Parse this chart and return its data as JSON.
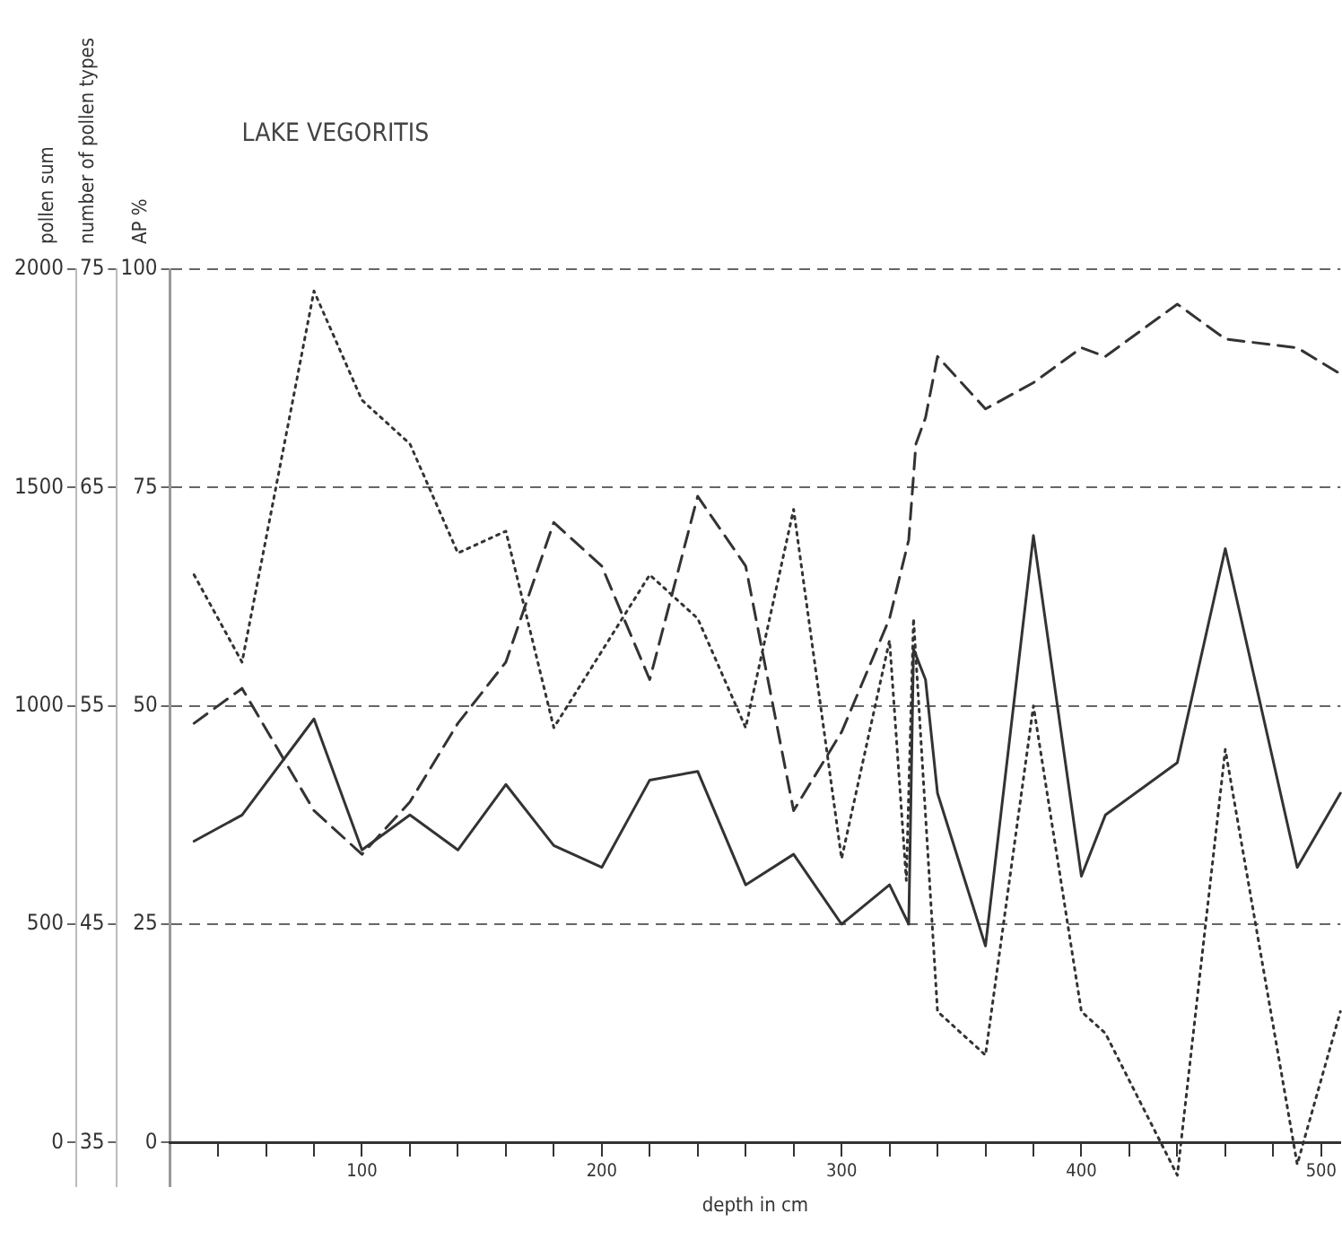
{
  "chart_data": {
    "type": "line",
    "title": "LAKE VEGORITIS",
    "xlabel": "depth in cm",
    "ylabel": "AP %",
    "y2label": "number of pollen types",
    "y3label": "pollen sum",
    "xlim": [
      20,
      508
    ],
    "xticks": [
      {
        "value": 40,
        "label": null
      },
      {
        "value": 60,
        "label": null
      },
      {
        "value": 80,
        "label": null
      },
      100,
      {
        "value": 120,
        "label": null
      },
      {
        "value": 140,
        "label": null
      },
      {
        "value": 160,
        "label": null
      },
      {
        "value": 180,
        "label": null
      },
      200,
      {
        "value": 220,
        "label": null
      },
      {
        "value": 240,
        "label": null
      },
      {
        "value": 260,
        "label": null
      },
      {
        "value": 280,
        "label": null
      },
      300,
      {
        "value": 320,
        "label": null
      },
      {
        "value": 340,
        "label": null
      },
      {
        "value": 360,
        "label": null
      },
      {
        "value": 380,
        "label": null
      },
      400,
      {
        "value": 420,
        "label": null
      },
      {
        "value": 440,
        "label": null
      },
      {
        "value": 460,
        "label": null
      },
      {
        "value": 480,
        "label": null
      },
      500
    ],
    "ylim": [
      -5,
      100
    ],
    "yticks": [
      0,
      25,
      50,
      75,
      100
    ],
    "y2lim": [
      33,
      75
    ],
    "y2ticks": [
      35,
      45,
      55,
      65,
      75
    ],
    "y3lim": [
      -100,
      2000
    ],
    "y3ticks": [
      0,
      500,
      1000,
      1500,
      2000
    ],
    "grid": "y",
    "legend": false,
    "marker": "none",
    "series": [
      {
        "axis": "y3",
        "color": "#333333",
        "line_style": "solid",
        "x": [
          30,
          50,
          80,
          100,
          120,
          140,
          160,
          180,
          200,
          220,
          240,
          260,
          280,
          300,
          320,
          328,
          330,
          335,
          340,
          360,
          380,
          400,
          410,
          440,
          460,
          490,
          508
        ],
        "values": [
          690,
          750,
          970,
          670,
          750,
          670,
          820,
          680,
          630,
          830,
          850,
          590,
          660,
          500,
          590,
          500,
          1130,
          1060,
          800,
          450,
          1390,
          610,
          750,
          870,
          1360,
          630,
          800
        ]
      },
      {
        "axis": "y",
        "color": "#333333",
        "line_style": "dashed",
        "x": [
          30,
          50,
          80,
          100,
          120,
          140,
          160,
          180,
          200,
          220,
          240,
          260,
          280,
          300,
          320,
          328,
          331,
          335,
          340,
          360,
          380,
          400,
          410,
          440,
          460,
          490,
          508
        ],
        "values": [
          48,
          52,
          38,
          33,
          39,
          48,
          55,
          71,
          66,
          53,
          74,
          66,
          38,
          47,
          60,
          69,
          80,
          83,
          90,
          84,
          87,
          91,
          90,
          96,
          92,
          91,
          88
        ]
      },
      {
        "axis": "y2",
        "color": "#333333",
        "line_style": "dotted",
        "x": [
          30,
          50,
          80,
          100,
          120,
          140,
          160,
          180,
          200,
          220,
          240,
          260,
          280,
          300,
          320,
          327,
          330,
          340,
          360,
          380,
          400,
          410,
          440,
          460,
          490,
          508
        ],
        "values": [
          61,
          57,
          74,
          69,
          67,
          62,
          63,
          54,
          57.5,
          61,
          59,
          54,
          64,
          48,
          58,
          47,
          59,
          41,
          39,
          55,
          41,
          40,
          33.5,
          53,
          34,
          41
        ]
      }
    ]
  }
}
